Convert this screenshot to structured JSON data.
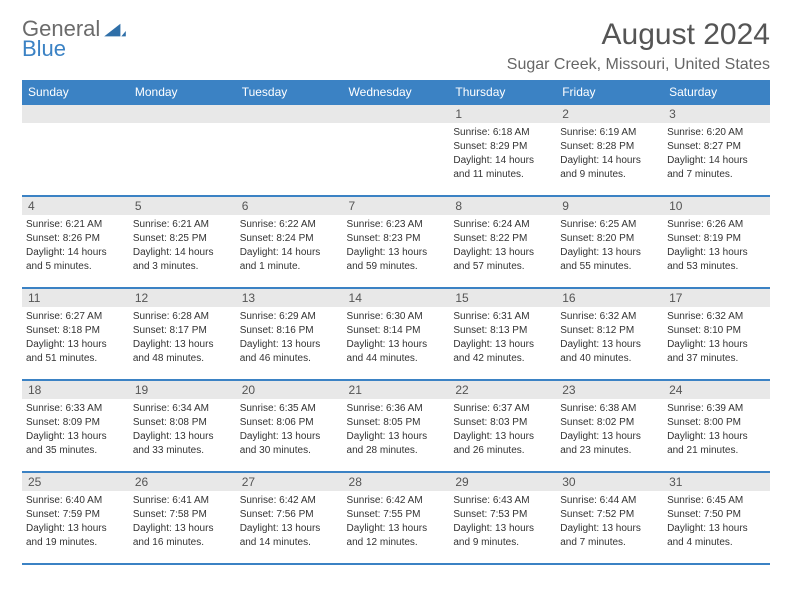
{
  "logo": {
    "line1": "General",
    "line2": "Blue",
    "icon_color": "#2f6fa8"
  },
  "header": {
    "month_title": "August 2024",
    "location": "Sugar Creek, Missouri, United States"
  },
  "colors": {
    "header_bg": "#3b82c4",
    "header_text": "#ffffff",
    "daynum_bg": "#e8e8e8",
    "border": "#3b82c4"
  },
  "day_names": [
    "Sunday",
    "Monday",
    "Tuesday",
    "Wednesday",
    "Thursday",
    "Friday",
    "Saturday"
  ],
  "weeks": [
    [
      null,
      null,
      null,
      null,
      {
        "num": "1",
        "sunrise": "6:18 AM",
        "sunset": "8:29 PM",
        "daylight": "14 hours and 11 minutes."
      },
      {
        "num": "2",
        "sunrise": "6:19 AM",
        "sunset": "8:28 PM",
        "daylight": "14 hours and 9 minutes."
      },
      {
        "num": "3",
        "sunrise": "6:20 AM",
        "sunset": "8:27 PM",
        "daylight": "14 hours and 7 minutes."
      }
    ],
    [
      {
        "num": "4",
        "sunrise": "6:21 AM",
        "sunset": "8:26 PM",
        "daylight": "14 hours and 5 minutes."
      },
      {
        "num": "5",
        "sunrise": "6:21 AM",
        "sunset": "8:25 PM",
        "daylight": "14 hours and 3 minutes."
      },
      {
        "num": "6",
        "sunrise": "6:22 AM",
        "sunset": "8:24 PM",
        "daylight": "14 hours and 1 minute."
      },
      {
        "num": "7",
        "sunrise": "6:23 AM",
        "sunset": "8:23 PM",
        "daylight": "13 hours and 59 minutes."
      },
      {
        "num": "8",
        "sunrise": "6:24 AM",
        "sunset": "8:22 PM",
        "daylight": "13 hours and 57 minutes."
      },
      {
        "num": "9",
        "sunrise": "6:25 AM",
        "sunset": "8:20 PM",
        "daylight": "13 hours and 55 minutes."
      },
      {
        "num": "10",
        "sunrise": "6:26 AM",
        "sunset": "8:19 PM",
        "daylight": "13 hours and 53 minutes."
      }
    ],
    [
      {
        "num": "11",
        "sunrise": "6:27 AM",
        "sunset": "8:18 PM",
        "daylight": "13 hours and 51 minutes."
      },
      {
        "num": "12",
        "sunrise": "6:28 AM",
        "sunset": "8:17 PM",
        "daylight": "13 hours and 48 minutes."
      },
      {
        "num": "13",
        "sunrise": "6:29 AM",
        "sunset": "8:16 PM",
        "daylight": "13 hours and 46 minutes."
      },
      {
        "num": "14",
        "sunrise": "6:30 AM",
        "sunset": "8:14 PM",
        "daylight": "13 hours and 44 minutes."
      },
      {
        "num": "15",
        "sunrise": "6:31 AM",
        "sunset": "8:13 PM",
        "daylight": "13 hours and 42 minutes."
      },
      {
        "num": "16",
        "sunrise": "6:32 AM",
        "sunset": "8:12 PM",
        "daylight": "13 hours and 40 minutes."
      },
      {
        "num": "17",
        "sunrise": "6:32 AM",
        "sunset": "8:10 PM",
        "daylight": "13 hours and 37 minutes."
      }
    ],
    [
      {
        "num": "18",
        "sunrise": "6:33 AM",
        "sunset": "8:09 PM",
        "daylight": "13 hours and 35 minutes."
      },
      {
        "num": "19",
        "sunrise": "6:34 AM",
        "sunset": "8:08 PM",
        "daylight": "13 hours and 33 minutes."
      },
      {
        "num": "20",
        "sunrise": "6:35 AM",
        "sunset": "8:06 PM",
        "daylight": "13 hours and 30 minutes."
      },
      {
        "num": "21",
        "sunrise": "6:36 AM",
        "sunset": "8:05 PM",
        "daylight": "13 hours and 28 minutes."
      },
      {
        "num": "22",
        "sunrise": "6:37 AM",
        "sunset": "8:03 PM",
        "daylight": "13 hours and 26 minutes."
      },
      {
        "num": "23",
        "sunrise": "6:38 AM",
        "sunset": "8:02 PM",
        "daylight": "13 hours and 23 minutes."
      },
      {
        "num": "24",
        "sunrise": "6:39 AM",
        "sunset": "8:00 PM",
        "daylight": "13 hours and 21 minutes."
      }
    ],
    [
      {
        "num": "25",
        "sunrise": "6:40 AM",
        "sunset": "7:59 PM",
        "daylight": "13 hours and 19 minutes."
      },
      {
        "num": "26",
        "sunrise": "6:41 AM",
        "sunset": "7:58 PM",
        "daylight": "13 hours and 16 minutes."
      },
      {
        "num": "27",
        "sunrise": "6:42 AM",
        "sunset": "7:56 PM",
        "daylight": "13 hours and 14 minutes."
      },
      {
        "num": "28",
        "sunrise": "6:42 AM",
        "sunset": "7:55 PM",
        "daylight": "13 hours and 12 minutes."
      },
      {
        "num": "29",
        "sunrise": "6:43 AM",
        "sunset": "7:53 PM",
        "daylight": "13 hours and 9 minutes."
      },
      {
        "num": "30",
        "sunrise": "6:44 AM",
        "sunset": "7:52 PM",
        "daylight": "13 hours and 7 minutes."
      },
      {
        "num": "31",
        "sunrise": "6:45 AM",
        "sunset": "7:50 PM",
        "daylight": "13 hours and 4 minutes."
      }
    ]
  ],
  "labels": {
    "sunrise_prefix": "Sunrise: ",
    "sunset_prefix": "Sunset: ",
    "daylight_prefix": "Daylight: "
  }
}
